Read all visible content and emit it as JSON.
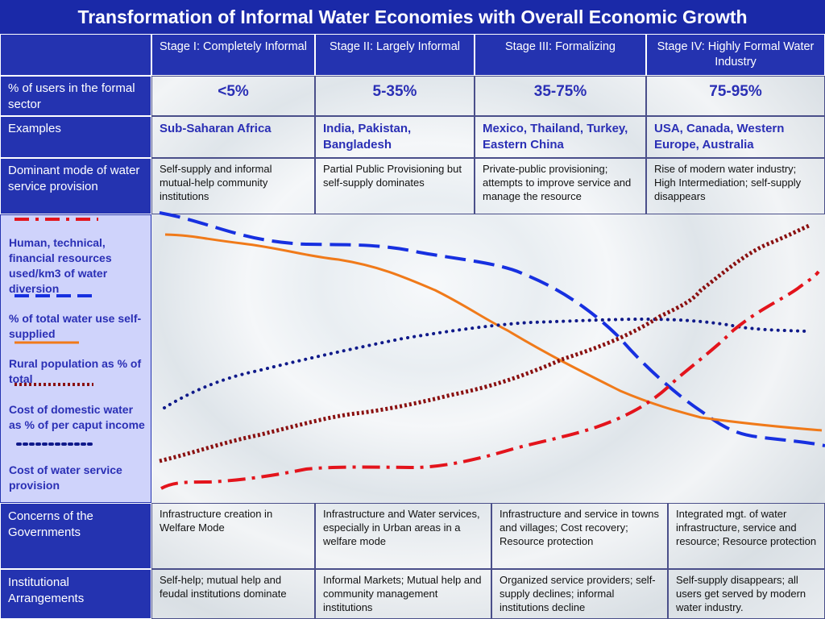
{
  "title": "Transformation of Informal Water Economies with Overall Economic Growth",
  "stages": [
    "Stage I: Completely Informal",
    "Stage II: Largely Informal",
    "Stage III: Formalizing",
    "Stage IV: Highly Formal Water Industry"
  ],
  "rows": {
    "users": {
      "label": "% of users in the formal sector",
      "values": [
        "<5%",
        "5-35%",
        "35-75%",
        "75-95%"
      ]
    },
    "examples": {
      "label": "Examples",
      "values": [
        "Sub-Saharan Africa",
        "India, Pakistan, Bangladesh",
        "Mexico, Thailand, Turkey, Eastern China",
        "USA, Canada, Western Europe, Australia"
      ]
    },
    "mode": {
      "label": "Dominant mode of water service provision",
      "values": [
        "Self-supply and informal mutual-help community institutions",
        "Partial Public Provisioning but self-supply dominates",
        "Private-public provisioning; attempts to improve service and manage the resource",
        "Rise of modern water industry; High Intermediation; self-supply disappears"
      ]
    },
    "concerns": {
      "label": "Concerns of  the Governments",
      "values": [
        "Infrastructure creation in Welfare Mode",
        "Infrastructure and Water services, especially in Urban areas in a welfare mode",
        "Infrastructure and service in towns and villages; Cost recovery; Resource protection",
        "Integrated mgt. of water infrastructure, service and resource; Resource protection"
      ]
    },
    "institutions": {
      "label": "Institutional Arrangements",
      "values": [
        "Self-help; mutual help and feudal institutions dominate",
        "Informal Markets; Mutual help and community management institutions",
        "Organized service providers; self-supply declines; informal institutions decline",
        "Self-supply disappears; all users get served by modern water industry."
      ]
    }
  },
  "legend": [
    {
      "label": "Human, technical, financial resources used/km3 of water diversion",
      "color": "#e3141c",
      "style": "dash-dot"
    },
    {
      "label": "% of total water use self-supplied",
      "color": "#1730e0",
      "style": "dashed"
    },
    {
      "label": "Rural population as % of total",
      "color": "#f07a1a",
      "style": "solid"
    },
    {
      "label": "Cost of domestic water as % of per caput income",
      "color": "#8a1010",
      "style": "dotted"
    },
    {
      "label": "Cost of water service provision",
      "color": "#101a8a",
      "style": "dotted"
    }
  ]
}
